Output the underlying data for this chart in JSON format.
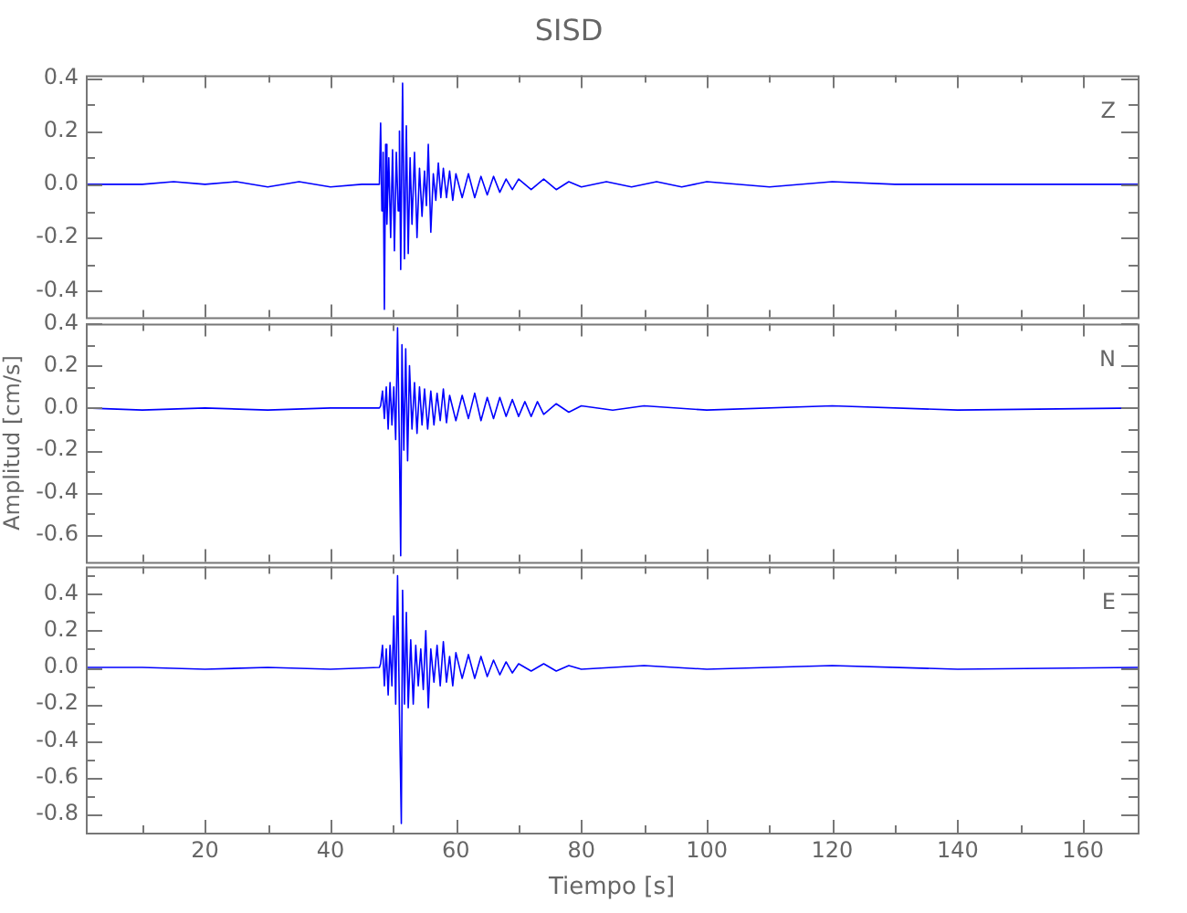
{
  "chart_data": [
    {
      "type": "line",
      "title": "SISD",
      "annotations": [
        "Z"
      ],
      "tick_labels": "y",
      "x": [
        1,
        10,
        15,
        20,
        25,
        30,
        35,
        40,
        45,
        47.8,
        48,
        48.2,
        48.4,
        48.6,
        48.8,
        49,
        49.3,
        49.6,
        49.9,
        50.2,
        50.5,
        50.8,
        51,
        51.2,
        51.5,
        51.8,
        52.1,
        52.4,
        52.7,
        53,
        53.4,
        53.8,
        54.2,
        54.6,
        55,
        55.3,
        55.6,
        56,
        56.4,
        56.8,
        57.2,
        57.6,
        58,
        58.5,
        59,
        59.5,
        60,
        61,
        62,
        63,
        64,
        65,
        66,
        67,
        68,
        69,
        70,
        72,
        74,
        76,
        78,
        80,
        84,
        88,
        92,
        96,
        100,
        110,
        120,
        130,
        140,
        150,
        160,
        168.7
      ],
      "series": [
        {
          "color": "#0000ff",
          "values": [
            0,
            0,
            0.01,
            0,
            0.01,
            -0.01,
            0.01,
            -0.01,
            0,
            0,
            0.23,
            -0.1,
            0.12,
            -0.47,
            0.15,
            -0.15,
            0.1,
            -0.2,
            0.13,
            -0.25,
            0.12,
            -0.1,
            0.2,
            -0.32,
            0.38,
            -0.28,
            0.22,
            -0.26,
            0.1,
            -0.15,
            0.12,
            -0.2,
            0.06,
            -0.12,
            0.05,
            -0.08,
            0.15,
            -0.18,
            0.04,
            -0.06,
            0.08,
            -0.05,
            0.06,
            -0.05,
            0.05,
            -0.06,
            0.04,
            -0.05,
            0.04,
            -0.05,
            0.03,
            -0.04,
            0.03,
            -0.03,
            0.02,
            -0.02,
            0.02,
            -0.02,
            0.02,
            -0.02,
            0.01,
            -0.01,
            0.01,
            -0.01,
            0.01,
            -0.01,
            0.01,
            -0.01,
            0.01,
            0,
            0,
            0,
            0,
            0
          ]
        }
      ],
      "xlim": [
        1,
        168.7
      ],
      "xticks": [
        {
          "value": 10,
          "label": null
        },
        20,
        {
          "value": 30,
          "label": null
        },
        40,
        {
          "value": 50,
          "label": null
        },
        60,
        {
          "value": 70,
          "label": null
        },
        80,
        {
          "value": 90,
          "label": null
        },
        100,
        {
          "value": 110,
          "label": null
        },
        120,
        {
          "value": 130,
          "label": null
        },
        140,
        {
          "value": 150,
          "label": null
        },
        160
      ],
      "ylim": [
        -0.5,
        0.41
      ],
      "yticks": [
        -0.4,
        {
          "value": -0.3,
          "label": null
        },
        -0.2,
        {
          "value": -0.1,
          "label": null
        },
        {
          "value": 0,
          "label": "0.0"
        },
        {
          "value": 0.1,
          "label": null
        },
        0.2,
        {
          "value": 0.3,
          "label": null
        },
        0.4
      ]
    },
    {
      "type": "line",
      "ylabel": "Amplitud [cm/s]",
      "annotations": [
        "N"
      ],
      "tick_labels": "y",
      "x": [
        1,
        10,
        20,
        30,
        40,
        47.8,
        48,
        48.3,
        48.6,
        48.9,
        49.2,
        49.5,
        49.8,
        50.1,
        50.4,
        50.7,
        51,
        51.2,
        51.4,
        51.7,
        52,
        52.3,
        52.6,
        53,
        53.4,
        53.8,
        54.2,
        54.6,
        55,
        55.5,
        56,
        56.5,
        57,
        57.5,
        58,
        58.5,
        59,
        60,
        61,
        62,
        63,
        64,
        65,
        66,
        67,
        68,
        69,
        70,
        71,
        72,
        73,
        74,
        76,
        78,
        80,
        85,
        90,
        100,
        120,
        140,
        168.7
      ],
      "series": [
        {
          "color": "#0000ff",
          "values": [
            0,
            -0.01,
            0,
            -0.01,
            0,
            0,
            0.01,
            0.08,
            -0.05,
            0.1,
            -0.1,
            0.12,
            -0.08,
            0.1,
            -0.15,
            0.38,
            -0.2,
            -0.7,
            0.3,
            -0.2,
            0.28,
            -0.25,
            0.2,
            -0.1,
            0.12,
            -0.12,
            0.1,
            -0.08,
            0.09,
            -0.1,
            0.08,
            -0.08,
            0.07,
            -0.06,
            0.09,
            -0.07,
            0.06,
            -0.06,
            0.06,
            -0.05,
            0.07,
            -0.06,
            0.05,
            -0.05,
            0.05,
            -0.04,
            0.04,
            -0.04,
            0.03,
            -0.04,
            0.03,
            -0.03,
            0.02,
            -0.02,
            0.01,
            -0.01,
            0.01,
            -0.01,
            0.01,
            -0.01,
            0
          ]
        }
      ],
      "xlim": [
        1,
        168.7
      ],
      "xticks": [
        {
          "value": 10,
          "label": null
        },
        20,
        {
          "value": 30,
          "label": null
        },
        40,
        {
          "value": 50,
          "label": null
        },
        60,
        {
          "value": 70,
          "label": null
        },
        80,
        {
          "value": 90,
          "label": null
        },
        100,
        {
          "value": 110,
          "label": null
        },
        120,
        {
          "value": 130,
          "label": null
        },
        140,
        {
          "value": 150,
          "label": null
        },
        160
      ],
      "ylim": [
        -0.73,
        0.4
      ],
      "yticks": [
        -0.6,
        {
          "value": -0.5,
          "label": null
        },
        -0.4,
        {
          "value": -0.3,
          "label": null
        },
        -0.2,
        {
          "value": -0.1,
          "label": null
        },
        {
          "value": 0,
          "label": "0.0"
        },
        {
          "value": 0.1,
          "label": null
        },
        0.2,
        {
          "value": 0.3,
          "label": null
        },
        0.4
      ]
    },
    {
      "type": "line",
      "xlabel": "Tiempo [s]",
      "annotations": [
        "E"
      ],
      "x": [
        1,
        10,
        20,
        30,
        40,
        47.8,
        48,
        48.3,
        48.6,
        48.9,
        49.2,
        49.5,
        49.8,
        50.1,
        50.4,
        50.7,
        51,
        51.3,
        51.5,
        51.8,
        52.1,
        52.4,
        52.8,
        53.2,
        53.6,
        54,
        54.4,
        54.8,
        55.2,
        55.6,
        56,
        56.5,
        57,
        57.5,
        58,
        58.5,
        59,
        59.5,
        60,
        61,
        62,
        63,
        64,
        65,
        66,
        67,
        68,
        69,
        70,
        72,
        74,
        76,
        78,
        80,
        90,
        100,
        120,
        140,
        168.7
      ],
      "series": [
        {
          "color": "#0000ff",
          "values": [
            0,
            0,
            -0.01,
            0,
            -0.01,
            0,
            0.02,
            0.12,
            -0.1,
            0.1,
            -0.15,
            0.12,
            -0.1,
            0.28,
            -0.2,
            0.5,
            -0.25,
            -0.85,
            0.42,
            -0.2,
            0.3,
            -0.22,
            0.15,
            -0.2,
            0.12,
            -0.1,
            0.1,
            -0.12,
            0.2,
            -0.22,
            0.1,
            -0.08,
            0.12,
            -0.1,
            0.14,
            -0.08,
            0.06,
            -0.1,
            0.08,
            -0.06,
            0.07,
            -0.06,
            0.06,
            -0.05,
            0.04,
            -0.04,
            0.03,
            -0.03,
            0.02,
            -0.02,
            0.02,
            -0.02,
            0.01,
            -0.01,
            0.01,
            -0.01,
            0.01,
            -0.01,
            0
          ]
        }
      ],
      "xlim": [
        1,
        168.7
      ],
      "xticks": [
        {
          "value": 10,
          "label": null
        },
        20,
        {
          "value": 30,
          "label": null
        },
        40,
        {
          "value": 50,
          "label": null
        },
        60,
        {
          "value": 70,
          "label": null
        },
        80,
        {
          "value": 90,
          "label": null
        },
        100,
        {
          "value": 110,
          "label": null
        },
        120,
        {
          "value": 130,
          "label": null
        },
        140,
        {
          "value": 150,
          "label": null
        },
        160
      ],
      "ylim": [
        -0.9,
        0.55
      ],
      "yticks": [
        -0.8,
        {
          "value": -0.7,
          "label": null
        },
        -0.6,
        {
          "value": -0.5,
          "label": null
        },
        -0.4,
        {
          "value": -0.3,
          "label": null
        },
        -0.2,
        {
          "value": -0.1,
          "label": null
        },
        {
          "value": 0,
          "label": "0.0"
        },
        {
          "value": 0.1,
          "label": null
        },
        0.2,
        {
          "value": 0.3,
          "label": null
        },
        0.4,
        {
          "value": 0.5,
          "label": null
        }
      ]
    }
  ]
}
